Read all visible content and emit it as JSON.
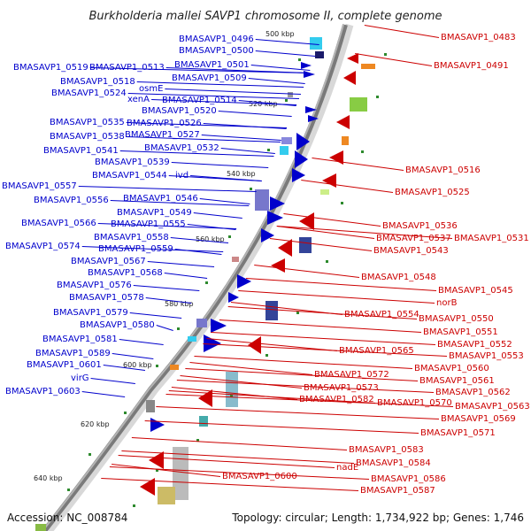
{
  "title": "Burkholderia mallei SAVP1 chromosome II, complete genome",
  "accession": "Accession: NC_008784",
  "topology": "Topology: circular; Length: 1,734,922 bp; Genes: 1,746",
  "colors": {
    "forward": "#0000cc",
    "reverse": "#cc0000",
    "backbone": "#888888",
    "tick": "#2d8a2d"
  },
  "kbp_labels": [
    "500 kbp",
    "520 kbp",
    "540 kbp",
    "560 kbp",
    "580 kbp",
    "600 kbp",
    "620 kbp",
    "640 kbp"
  ],
  "forward_labels": [
    "BMASAVP1_0496",
    "BMASAVP1_0500",
    "BMASAVP1_0501",
    "BMASAVP1_0519",
    "BMASAVP1_0513",
    "BMASAVP1_0509",
    "BMASAVP1_0518",
    "osmE",
    "BMASAVP1_0524",
    "xenA",
    "BMASAVP1_0514",
    "BMASAVP1_0520",
    "BMASAVP1_0535",
    "BMASAVP1_0526",
    "BMASAVP1_0538",
    "BMASAVP1_0527",
    "BMASAVP1_0541",
    "BMASAVP1_0532",
    "BMASAVP1_0539",
    "BMASAVP1_0544",
    "ivd",
    "BMASAVP1_0557",
    "BMASAVP1_0546",
    "BMASAVP1_0556",
    "BMASAVP1_0549",
    "BMASAVP1_0566",
    "BMASAVP1_0555",
    "BMASAVP1_0558",
    "BMASAVP1_0574",
    "BMASAVP1_0559",
    "BMASAVP1_0567",
    "BMASAVP1_0568",
    "BMASAVP1_0576",
    "BMASAVP1_0578",
    "BMASAVP1_0579",
    "BMASAVP1_0580",
    "BMASAVP1_0581",
    "BMASAVP1_0589",
    "BMASAVP1_0601",
    "virG",
    "BMASAVP1_0603"
  ],
  "reverse_labels": [
    "BMASAVP1_0483",
    "BMASAVP1_0491",
    "BMASAVP1_0516",
    "BMASAVP1_0525",
    "BMASAVP1_0536",
    "BMASAVP1_0537",
    "BMASAVP1_0531",
    "BMASAVP1_0543",
    "BMASAVP1_0548",
    "BMASAVP1_0545",
    "norB",
    "BMASAVP1_0554",
    "BMASAVP1_0550",
    "BMASAVP1_0551",
    "BMASAVP1_0552",
    "BMASAVP1_0553",
    "BMASAVP1_0565",
    "BMASAVP1_0560",
    "BMASAVP1_0572",
    "BMASAVP1_0561",
    "BMASAVP1_0573",
    "BMASAVP1_0562",
    "BMASAVP1_0582",
    "BMASAVP1_0570",
    "BMASAVP1_0563",
    "BMASAVP1_0569",
    "BMASAVP1_0571",
    "BMASAVP1_0583",
    "BMASAVP1_0584",
    "nadE",
    "BMASAVP1_0600",
    "BMASAVP1_0586",
    "BMASAVP1_0587"
  ]
}
